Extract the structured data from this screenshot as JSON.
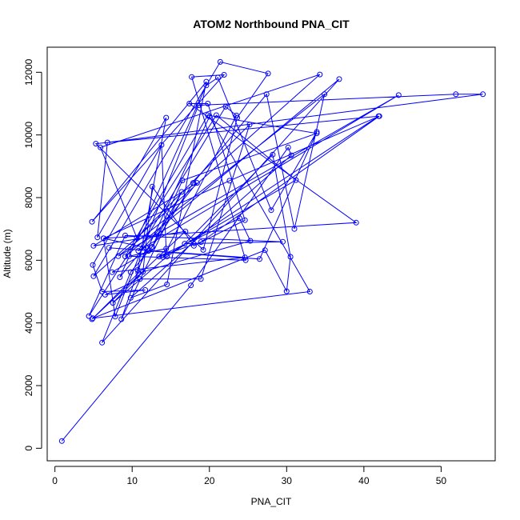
{
  "chart_data": {
    "type": "scatter",
    "title": "ATOM2 Northbound PNA_CIT",
    "xlabel": "PNA_CIT",
    "ylabel": "Altitude (m)",
    "xlim": [
      -1,
      57
    ],
    "ylim": [
      -400,
      12800
    ],
    "xticks": [
      0,
      10,
      20,
      30,
      40,
      50
    ],
    "yticks": [
      0,
      2000,
      4000,
      6000,
      8000,
      10000,
      12000
    ],
    "color": "#0000ff",
    "mode": "lines+markers",
    "x": [
      0.9,
      17.6,
      30.2,
      30.6,
      9.8,
      14.5,
      19.6,
      4.8,
      21.9,
      17.7,
      24.7,
      9.6,
      14.4,
      13.8,
      4.9,
      6.1,
      11.7,
      6.5,
      11.0,
      18.9,
      25.2,
      10.6,
      5.9,
      34.3,
      5.0,
      21.4,
      27.6,
      23.6,
      19.2,
      5.3,
      41.9,
      14.5,
      7.5,
      11.4,
      12.6,
      18.0,
      24.6,
      19.8,
      17.4,
      39.0,
      6.3,
      11.8,
      8.6,
      16.4,
      12.5,
      9.8,
      6.1,
      36.8,
      9.1,
      19.8,
      33.9,
      16.5,
      12.6,
      17.9,
      27.4,
      31.0,
      34.9,
      8.2,
      44.5,
      10.8,
      22.1,
      23.5,
      14.0,
      31.2,
      20.9,
      4.4,
      9.1,
      29.5,
      16.8,
      28.2,
      30.5,
      30.0,
      27.2,
      4.9,
      33.0,
      20.0,
      10.7,
      14.4,
      5.5,
      6.8,
      55.4,
      51.9,
      18.6,
      7.8,
      6.3,
      22.6,
      42.0,
      18.9,
      13.5,
      23.9,
      25.3,
      10.8,
      4.8,
      16.9,
      5.0,
      18.4,
      8.4,
      19.6,
      21.1,
      28.0,
      33.9,
      26.5,
      12.1,
      7.4,
      24.6,
      7.0
    ],
    "y": [
      230,
      5200,
      9600,
      9350,
      4800,
      5230,
      11700,
      7230,
      11920,
      11850,
      6000,
      6130,
      6370,
      9680,
      5850,
      5000,
      5050,
      4900,
      5400,
      5400,
      10330,
      6720,
      9600,
      11930,
      5490,
      12330,
      11960,
      10550,
      6330,
      9720,
      10600,
      6120,
      4640,
      5630,
      8350,
      6460,
      7280,
      11000,
      11000,
      7200,
      6700,
      6400,
      4120,
      8180,
      6400,
      5620,
      3370,
      11780,
      6120,
      10630,
      10050,
      8550,
      6430,
      8470,
      11300,
      7000,
      11300,
      6130,
      11270,
      6300,
      10900,
      10620,
      6100,
      8560,
      10630,
      4220,
      6790,
      6590,
      6530,
      9370,
      6110,
      5010,
      6320,
      4150,
      5000,
      10580,
      5690,
      10550,
      6730,
      9760,
      11300,
      11300,
      10950,
      4200,
      6700,
      8540,
      10600,
      6580,
      6120,
      7340,
      6620,
      5590,
      4120,
      6920,
      6460,
      8470,
      5460,
      11580,
      11830,
      7600,
      10100,
      6040,
      6300,
      5620,
      6090,
      6400
    ]
  }
}
